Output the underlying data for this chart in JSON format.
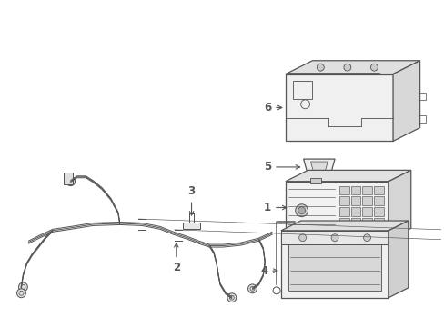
{
  "background_color": "#ffffff",
  "line_color": "#555555",
  "label_color": "#000000",
  "figsize": [
    4.89,
    3.6
  ],
  "dpi": 100,
  "lw": 0.9
}
